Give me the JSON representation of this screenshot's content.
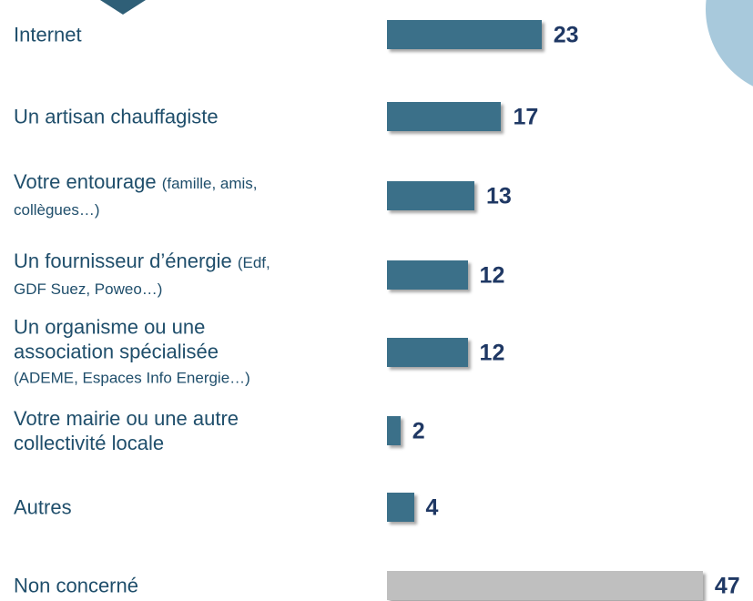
{
  "chart_data": {
    "type": "bar",
    "categories": [
      "Internet",
      "Un artisan chauffagiste",
      "Votre entourage (famille, amis,\ncollègues…)",
      "Un fournisseur d’énergie (Edf,\nGDF Suez, Poweo…)",
      "Un organisme ou une\nassociation spécialisée\n(ADEME, Espaces Info Energie…)",
      "Votre mairie ou une autre\ncollectivité locale",
      "Autres",
      "Non concerné"
    ],
    "values": [
      23,
      17,
      13,
      12,
      12,
      2,
      4,
      47
    ],
    "colors": [
      "#3b7089",
      "#3b7089",
      "#3b7089",
      "#3b7089",
      "#3b7089",
      "#3b7089",
      "#3b7089",
      "#bfbfbf"
    ]
  }
}
